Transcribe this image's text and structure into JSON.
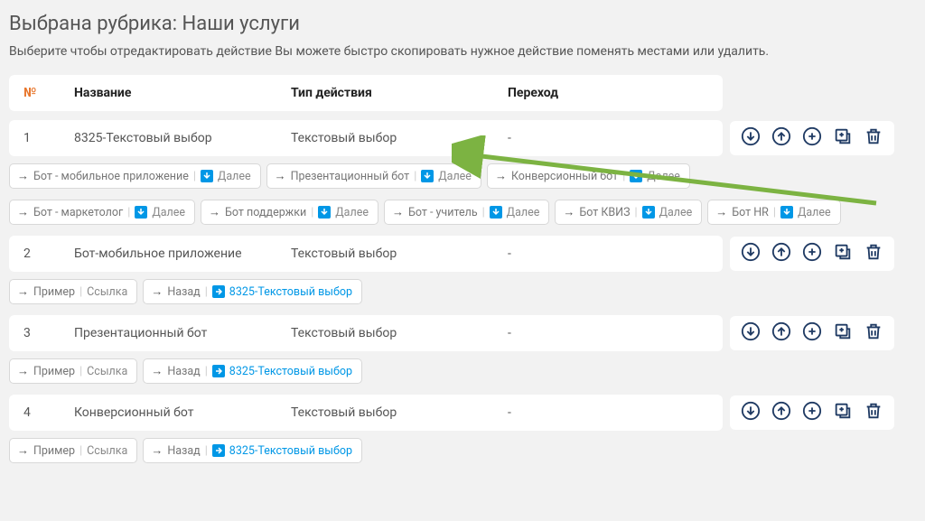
{
  "title": "Выбрана рубрика: Наши услуги",
  "subtitle": "Выберите чтобы отредактировать действие Вы можете быстро скопировать нужное действие поменять местами или удалить.",
  "columns": {
    "num": "№",
    "name": "Название",
    "type": "Тип действия",
    "transition": "Переход"
  },
  "arrow_color": "#7cb342",
  "rows": [
    {
      "num": "1",
      "name": "8325-Текстовый выбор",
      "type": "Текстовый выбор",
      "transition": "-",
      "tags": [
        {
          "kind": "next",
          "name": "Бот - мобильное приложение",
          "next": "Далее"
        },
        {
          "kind": "next",
          "name": "Презентационный бот",
          "next": "Далее"
        },
        {
          "kind": "next",
          "name": "Конверсионный бот",
          "next": "Далее"
        },
        {
          "kind": "next",
          "name": "Бот - маркетолог",
          "next": "Далее"
        },
        {
          "kind": "next",
          "name": "Бот поддержки",
          "next": "Далее"
        },
        {
          "kind": "next",
          "name": "Бот - учитель",
          "next": "Далее"
        },
        {
          "kind": "next",
          "name": "Бот КВИЗ",
          "next": "Далее"
        },
        {
          "kind": "next",
          "name": "Бот HR",
          "next": "Далее"
        }
      ]
    },
    {
      "num": "2",
      "name": "Бот-мобильное приложение",
      "type": "Текстовый выбор",
      "transition": "-",
      "tags": [
        {
          "kind": "link",
          "name": "Пример",
          "link": "Ссылка"
        },
        {
          "kind": "back",
          "name": "Назад",
          "target": "8325-Текстовый выбор"
        }
      ]
    },
    {
      "num": "3",
      "name": "Презентационный бот",
      "type": "Текстовый выбор",
      "transition": "-",
      "tags": [
        {
          "kind": "link",
          "name": "Пример",
          "link": "Ссылка"
        },
        {
          "kind": "back",
          "name": "Назад",
          "target": "8325-Текстовый выбор"
        }
      ]
    },
    {
      "num": "4",
      "name": "Конверсионный бот",
      "type": "Текстовый выбор",
      "transition": "-",
      "tags": [
        {
          "kind": "link",
          "name": "Пример",
          "link": "Ссылка"
        },
        {
          "kind": "back",
          "name": "Назад",
          "target": "8325-Текстовый выбор"
        }
      ]
    }
  ],
  "colors": {
    "header_num": "#e8782f",
    "badge_bg": "#0097e6",
    "icon_stroke": "#1f3a63"
  }
}
